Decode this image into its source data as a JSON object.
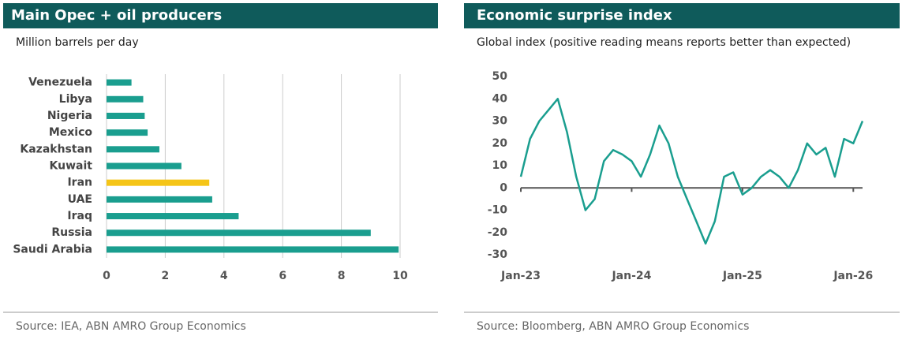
{
  "chart_data": [
    {
      "type": "bar",
      "orientation": "horizontal",
      "title": "Main Opec + oil producers",
      "subtitle": "Million barrels per day",
      "categories": [
        "Venezuela",
        "Libya",
        "Nigeria",
        "Mexico",
        "Kazakhstan",
        "Kuwait",
        "Iran",
        "UAE",
        "Iraq",
        "Russia",
        "Saudi Arabia"
      ],
      "values": [
        0.85,
        1.25,
        1.3,
        1.4,
        1.8,
        2.55,
        3.5,
        3.6,
        4.5,
        9.0,
        9.95
      ],
      "colors": [
        "#1a9e8f",
        "#1a9e8f",
        "#1a9e8f",
        "#1a9e8f",
        "#1a9e8f",
        "#1a9e8f",
        "#f5c518",
        "#1a9e8f",
        "#1a9e8f",
        "#1a9e8f",
        "#1a9e8f"
      ],
      "xlim": [
        0,
        10
      ],
      "xticks": [
        0,
        2,
        4,
        6,
        8,
        10
      ],
      "grid": true,
      "source": "Source: IEA, ABN AMRO Group Economics"
    },
    {
      "type": "line",
      "title": "Economic surprise index",
      "subtitle": "Global index (positive reading means reports better than expected)",
      "x": [
        "2023-01",
        "2023-02",
        "2023-03",
        "2023-04",
        "2023-05",
        "2023-06",
        "2023-07",
        "2023-08",
        "2023-09",
        "2023-10",
        "2023-11",
        "2023-12",
        "2024-01",
        "2024-02",
        "2024-03",
        "2024-04",
        "2024-05",
        "2024-06",
        "2024-07",
        "2024-08",
        "2024-09",
        "2024-10",
        "2024-11",
        "2024-12",
        "2025-01",
        "2025-02",
        "2025-03",
        "2025-04",
        "2025-05",
        "2025-06",
        "2025-07",
        "2025-08",
        "2025-09",
        "2025-10",
        "2025-11",
        "2025-12",
        "2026-01",
        "2026-02"
      ],
      "series": [
        {
          "name": "Global",
          "color": "#1a9e8f",
          "values": [
            5,
            22,
            30,
            35,
            40,
            25,
            5,
            -10,
            -5,
            12,
            17,
            15,
            12,
            5,
            15,
            28,
            20,
            5,
            -5,
            -15,
            -25,
            -15,
            5,
            7,
            -3,
            0,
            5,
            8,
            5,
            0,
            8,
            20,
            15,
            18,
            5,
            22,
            20,
            30
          ]
        }
      ],
      "ylim": [
        -30,
        50
      ],
      "yticks": [
        -30,
        -20,
        -10,
        0,
        10,
        20,
        30,
        40,
        50
      ],
      "xlim": [
        "2023-01",
        "2026-02"
      ],
      "xticks": [
        {
          "value": "2023-01",
          "label": "Jan-23"
        },
        {
          "value": "2024-01",
          "label": "Jan-24"
        },
        {
          "value": "2025-01",
          "label": "Jan-25"
        },
        {
          "value": "2026-01",
          "label": "Jan-26"
        }
      ],
      "source": "Source: Bloomberg, ABN AMRO Group Economics"
    }
  ]
}
